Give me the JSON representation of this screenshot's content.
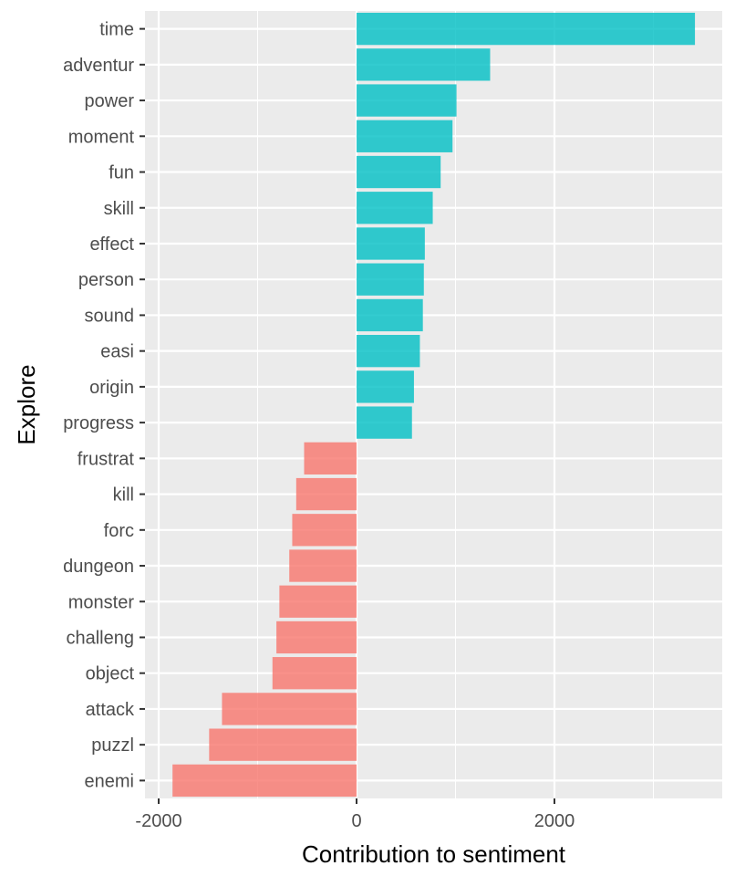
{
  "chart_data": {
    "type": "bar",
    "orientation": "horizontal",
    "xlabel": "Contribution to sentiment",
    "ylabel": "Explore",
    "xlim": [
      -2000,
      3500
    ],
    "x_ticks": [
      -2000,
      0,
      2000
    ],
    "grid": true,
    "legend": "none",
    "colors": {
      "positive": "#00BFC4",
      "negative": "#F8766D",
      "panel": "#EBEBEB",
      "grid": "#FFFFFF"
    },
    "categories": [
      "time",
      "adventur",
      "power",
      "moment",
      "fun",
      "skill",
      "effect",
      "person",
      "sound",
      "easi",
      "origin",
      "progress",
      "frustrat",
      "kill",
      "forc",
      "dungeon",
      "monster",
      "challeng",
      "object",
      "attack",
      "puzzl",
      "enemi"
    ],
    "values": [
      3420,
      1350,
      1010,
      970,
      850,
      770,
      690,
      680,
      670,
      640,
      580,
      560,
      -530,
      -610,
      -650,
      -680,
      -780,
      -810,
      -850,
      -1360,
      -1490,
      -1860
    ],
    "sentiment": [
      "positive",
      "positive",
      "positive",
      "positive",
      "positive",
      "positive",
      "positive",
      "positive",
      "positive",
      "positive",
      "positive",
      "positive",
      "negative",
      "negative",
      "negative",
      "negative",
      "negative",
      "negative",
      "negative",
      "negative",
      "negative",
      "negative"
    ]
  }
}
